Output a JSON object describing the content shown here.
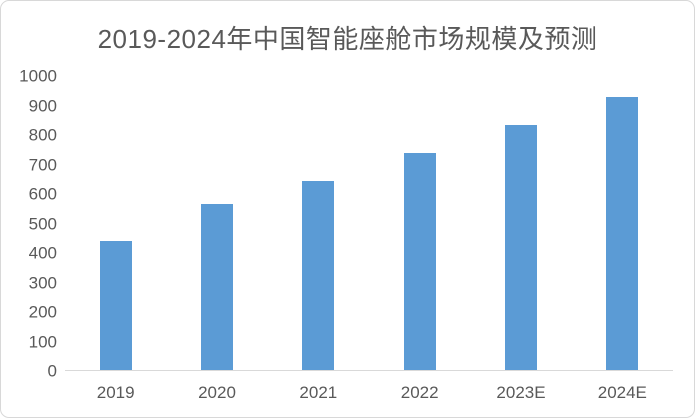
{
  "frame": {
    "background": "#ffffff",
    "border_color": "#d8d8d8"
  },
  "chart_data": {
    "type": "bar",
    "title": "2019-2024年中国智能座舱市场规模及预测",
    "categories": [
      "2019",
      "2020",
      "2021",
      "2022",
      "2023E",
      "2024E"
    ],
    "values": [
      440,
      565,
      645,
      740,
      835,
      930
    ],
    "ylim": [
      0,
      1000
    ],
    "ytick_step": 100,
    "yticks": [
      0,
      100,
      200,
      300,
      400,
      500,
      600,
      700,
      800,
      900,
      1000
    ],
    "xlabel": "",
    "ylabel": "",
    "grid": false,
    "legend_position": "none",
    "bar_color": "#5b9bd5",
    "axis_line_color": "#d9d9d9",
    "tick_label_color": "#595959",
    "title_color": "#595959"
  }
}
